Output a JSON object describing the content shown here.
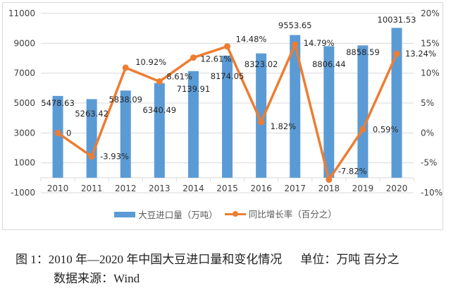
{
  "chart_data": {
    "type": "bar+line",
    "categories": [
      "2010",
      "2011",
      "2012",
      "2013",
      "2014",
      "2015",
      "2016",
      "2017",
      "2018",
      "2019",
      "2020"
    ],
    "series": [
      {
        "name": "大豆进口量（万吨）",
        "type": "bar",
        "axis": "left",
        "color": "#5b9bd5",
        "values": [
          5478.63,
          5263.42,
          5838.09,
          6340.49,
          7139.91,
          8174.05,
          8323.02,
          9553.65,
          8806.44,
          8858.59,
          10031.53
        ],
        "labels": [
          "5478.63",
          "5263.42",
          "5838.09",
          "6340.49",
          "7139.91",
          "8174.05",
          "8323.02",
          "9553.65",
          "8806.44",
          "8858.59",
          "10031.53"
        ]
      },
      {
        "name": "同比增长率（百分之）",
        "type": "line",
        "axis": "right",
        "color": "#ed7d31",
        "values": [
          0,
          -3.93,
          10.92,
          8.61,
          12.61,
          14.48,
          1.82,
          14.79,
          -7.82,
          0.59,
          13.24
        ],
        "labels": [
          "0",
          "-3.93%",
          "10.92%",
          "8.61%",
          "12.61%",
          "14.48%",
          "1.82%",
          "14.79%",
          "-7.82%",
          "0.59%",
          "13.24%"
        ]
      }
    ],
    "y_left": {
      "ylim": [
        -1000,
        11000
      ],
      "ticks": [
        "-1000",
        "1000",
        "3000",
        "5000",
        "7000",
        "9000",
        "11000"
      ]
    },
    "y_right": {
      "ylim": [
        -10,
        20
      ],
      "ticks": [
        "-10%",
        "-5%",
        "0%",
        "5%",
        "10%",
        "15%",
        "20%"
      ]
    },
    "grid": true,
    "legend_position": "bottom"
  },
  "caption": {
    "line1": "图 1：2010 年—2020 年中国大豆进口量和变化情况",
    "unit": "单位：万吨  百分之",
    "source": "数据来源：Wind"
  }
}
